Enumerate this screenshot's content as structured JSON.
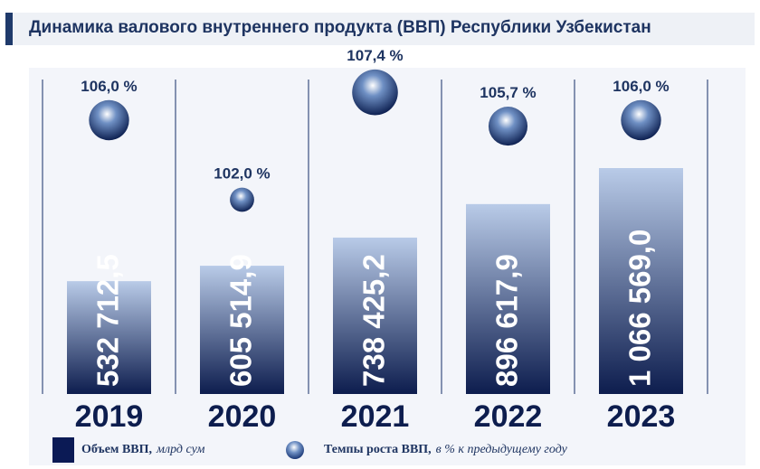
{
  "title": "Динамика валового внутреннего продукта (ВВП) Республики Узбекистан",
  "chart_data": {
    "type": "bar",
    "categories": [
      "2019",
      "2020",
      "2021",
      "2022",
      "2023"
    ],
    "series": [
      {
        "name": "Объем ВВП",
        "values": [
          532712.5,
          605514.9,
          738425.2,
          896617.9,
          1066569.0
        ],
        "labels": [
          "532 712,5",
          "605 514,9",
          "738 425,2",
          "896 617,9",
          "1 066 569,0"
        ]
      },
      {
        "name": "Темпы роста ВВП",
        "values": [
          106.0,
          102.0,
          107.4,
          105.7,
          106.0
        ],
        "labels": [
          "106,0 %",
          "102,0 %",
          "107,4 %",
          "105,7 %",
          "106,0 %"
        ]
      }
    ],
    "bar_colors": {
      "top": "#b9cbe8",
      "bottom": "#0d1d4e"
    },
    "ball_colors": {
      "highlight": "#ffffff",
      "mid": "#6f90c4",
      "dark": "#0e2152"
    },
    "legend_placement": "bottom"
  },
  "legend": {
    "gdp_volume_bold": "Объем ВВП,",
    "gdp_volume_unit": "млрд сум",
    "growth_rate_bold": "Темпы роста ВВП,",
    "growth_rate_unit": "в % к предыдущему году"
  }
}
